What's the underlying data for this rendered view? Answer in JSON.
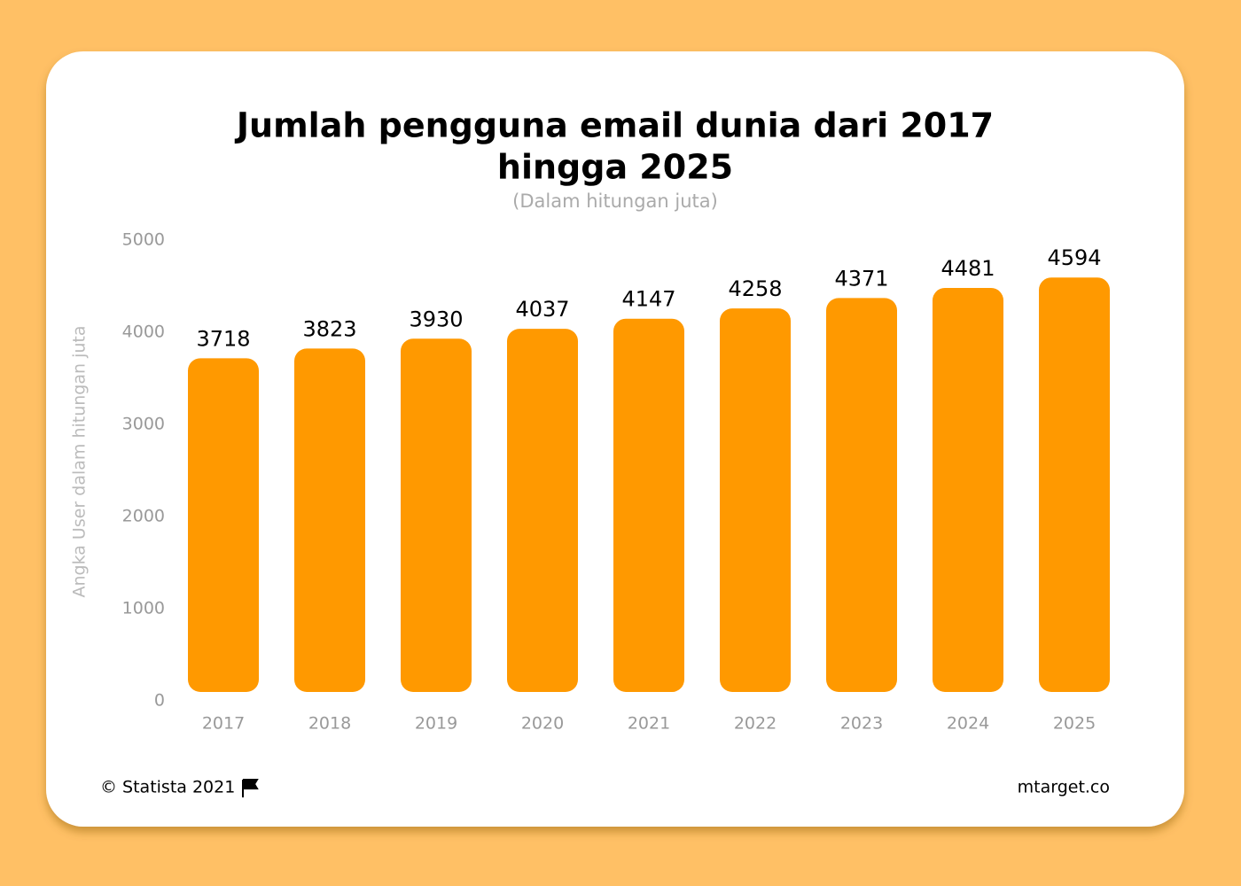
{
  "chart_data": {
    "type": "bar",
    "title": "Jumlah pengguna email dunia dari 2017",
    "title_line2": "hingga 2025",
    "subtitle": "(Dalam hitungan juta)",
    "y_label": "Angka User dalam hitungan juta",
    "categories": [
      "2017",
      "2018",
      "2019",
      "2020",
      "2021",
      "2022",
      "2023",
      "2024",
      "2025"
    ],
    "values": [
      3718,
      3823,
      3930,
      4037,
      4147,
      4258,
      4371,
      4481,
      4594
    ],
    "color": "#ff9900",
    "ylim": [
      0,
      5000
    ],
    "yticks": [
      0,
      1000,
      2000,
      3000,
      4000,
      5000
    ],
    "grid": false,
    "source": "© Statista 2021",
    "credit": "mtarget.co"
  }
}
